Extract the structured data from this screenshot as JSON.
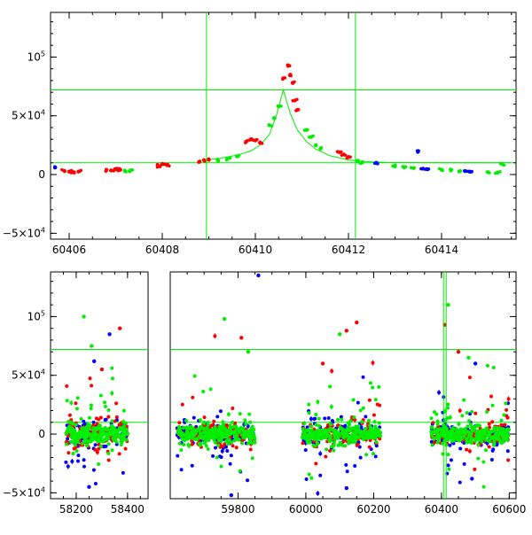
{
  "chart_data": [
    {
      "type": "scatter",
      "title": "",
      "xlabel": "",
      "ylabel": "",
      "xlim": [
        60405.6,
        60415.6
      ],
      "ylim": [
        -55000,
        138000
      ],
      "x_ticks": [
        {
          "value": 60406,
          "label": "60406"
        },
        {
          "value": 60408,
          "label": "60408"
        },
        {
          "value": 60410,
          "label": "60410"
        },
        {
          "value": 60412,
          "label": "60412"
        },
        {
          "value": 60414,
          "label": "60414"
        }
      ],
      "y_ticks": [
        {
          "value": -50000,
          "base": "−5×10",
          "exp": "4"
        },
        {
          "value": 0,
          "base": "0",
          "exp": ""
        },
        {
          "value": 50000,
          "base": "5×10",
          "exp": "4"
        },
        {
          "value": 100000,
          "base": "10",
          "exp": "5"
        }
      ],
      "grid": false,
      "hlines": [
        10000,
        72000
      ],
      "vlines": [
        60408.95,
        60412.15
      ],
      "model_curve": {
        "color": "#00ee00",
        "x": [
          60408.8,
          60409.2,
          60409.6,
          60409.9,
          60410.1,
          60410.3,
          60410.45,
          60410.6,
          60410.75,
          60410.9,
          60411.1,
          60411.3,
          60411.6,
          60412.0,
          60412.4,
          60412.8,
          60413.5,
          60414.5,
          60415.5
        ],
        "y": [
          12000,
          13500,
          16500,
          20000,
          25000,
          34000,
          50000,
          72000,
          52000,
          38000,
          28000,
          21500,
          16000,
          12500,
          11000,
          10300,
          10100,
          10000,
          10000
        ]
      },
      "series": [
        {
          "color": "#ff0000",
          "x": [
            60405.9,
            60406.0,
            60406.1,
            60406.2,
            60406.8,
            60406.9,
            60407.0,
            60407.1,
            60407.9,
            60407.95,
            60408.0,
            60408.1,
            60408.8,
            60408.9,
            60409.0,
            60409.8,
            60409.9,
            60410.0,
            60410.1,
            60410.6,
            60410.7,
            60410.75,
            60410.8,
            60410.85,
            60410.9,
            60411.8,
            60411.9,
            60412.0
          ],
          "y": [
            3000,
            2500,
            2000,
            2500,
            4000,
            3500,
            4500,
            4000,
            8000,
            7000,
            9000,
            8000,
            11000,
            12000,
            13000,
            28000,
            30000,
            29000,
            27000,
            82000,
            93000,
            85000,
            78000,
            63000,
            55000,
            19000,
            17000,
            15000
          ]
        },
        {
          "color": "#00ee00",
          "x": [
            60407.2,
            60407.3,
            60409.2,
            60409.4,
            60409.6,
            60410.3,
            60410.4,
            60410.5,
            60411.1,
            60411.2,
            60411.3,
            60411.4,
            60412.2,
            60412.3,
            60413.0,
            60413.2,
            60413.4,
            60414.0,
            60414.2,
            60414.4,
            60415.0,
            60415.2,
            60415.3
          ],
          "y": [
            3000,
            2800,
            12000,
            13500,
            15500,
            42000,
            48000,
            58000,
            38000,
            32000,
            25000,
            22000,
            11000,
            10500,
            7000,
            6000,
            5500,
            4000,
            3500,
            3000,
            2000,
            1500,
            9000
          ]
        },
        {
          "color": "#0000ff",
          "x": [
            60405.7,
            60412.6,
            60413.5,
            60413.6,
            60413.7,
            60414.5,
            60414.6
          ],
          "y": [
            6000,
            10000,
            20000,
            5000,
            4500,
            3000,
            2500
          ]
        }
      ]
    },
    {
      "type": "scatter",
      "title": "",
      "xlabel": "",
      "ylabel": "",
      "broken_axis": true,
      "panels": [
        {
          "xlim": [
            58100,
            58480
          ]
        },
        {
          "xlim": [
            59600,
            60620
          ]
        }
      ],
      "ylim": [
        -55000,
        138000
      ],
      "x_ticks": [
        {
          "value": 58200,
          "label": "58200"
        },
        {
          "value": 58400,
          "label": "58400"
        },
        {
          "value": 59800,
          "label": "59800"
        },
        {
          "value": 60000,
          "label": "60000"
        },
        {
          "value": 60200,
          "label": "60200"
        },
        {
          "value": 60400,
          "label": "60400"
        },
        {
          "value": 60600,
          "label": "60600"
        }
      ],
      "y_ticks": [
        {
          "value": -50000,
          "base": "−5×10",
          "exp": "4"
        },
        {
          "value": 0,
          "base": "0",
          "exp": ""
        },
        {
          "value": 50000,
          "base": "5×10",
          "exp": "4"
        },
        {
          "value": 100000,
          "base": "10",
          "exp": "5"
        }
      ],
      "grid": false,
      "hlines": [
        10000,
        72000
      ],
      "vlines": [
        60410
      ],
      "seasons": [
        {
          "start": 58160,
          "end": 58400
        },
        {
          "start": 59620,
          "end": 59850
        },
        {
          "start": 59990,
          "end": 60220
        },
        {
          "start": 60370,
          "end": 60600
        }
      ],
      "outliers": {
        "red": [
          [
            58370,
            90000
          ],
          [
            60150,
            95000
          ],
          [
            60120,
            88000
          ],
          [
            59810,
            82000
          ],
          [
            60410,
            93000
          ],
          [
            58300,
            55000
          ],
          [
            60050,
            60000
          ],
          [
            60450,
            70000
          ]
        ],
        "green": [
          [
            58230,
            100000
          ],
          [
            59760,
            98000
          ],
          [
            58260,
            75000
          ],
          [
            60100,
            85000
          ],
          [
            60420,
            110000
          ],
          [
            59830,
            70000
          ],
          [
            60480,
            65000
          ]
        ],
        "blue": [
          [
            58330,
            85000
          ],
          [
            59860,
            135000
          ],
          [
            58270,
            62000
          ],
          [
            60500,
            60000
          ],
          [
            58250,
            -45000
          ],
          [
            59780,
            -52000
          ],
          [
            60120,
            -46000
          ],
          [
            60490,
            -38000
          ]
        ]
      }
    }
  ]
}
